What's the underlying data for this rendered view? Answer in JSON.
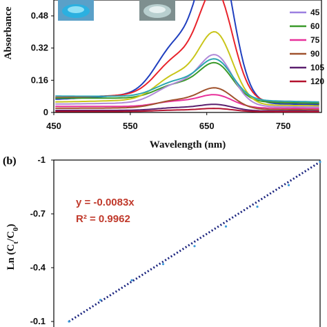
{
  "chart_data": [
    {
      "panel_label": "",
      "type": "line",
      "xlabel": "Wavelength (nm)",
      "ylabel": "Absorbance",
      "xlim": [
        450,
        800
      ],
      "ylim": [
        0,
        0.6
      ],
      "x_ticks": [
        "450",
        "550",
        "650",
        "750"
      ],
      "y_ticks": [
        "0",
        "0.16",
        "0.32",
        "0.48"
      ],
      "legend_position": "right",
      "inset_images": [
        "blue-vial-photo",
        "clear-vial-photo"
      ],
      "series": [
        {
          "name": "",
          "color": "#1f3fbf",
          "peak": 0.75,
          "shoulder": 0.46,
          "base": 0.06
        },
        {
          "name": "",
          "color": "#e8232b",
          "peak": 0.53,
          "shoulder": 0.33,
          "base": 0.07
        },
        {
          "name": "45",
          "color": "#9b7fe0",
          "peak": 0.0,
          "shoulder": 0.0,
          "base": 0.0,
          "legend_only": true
        },
        {
          "name": "60",
          "color": "#3a9a2a",
          "peak": 0.18,
          "shoulder": 0.13,
          "base": 0.07
        },
        {
          "name": "75",
          "color": "#e8309a",
          "peak": 0.06,
          "shoulder": 0.05,
          "base": 0.03
        },
        {
          "name": "90",
          "color": "#a0522d",
          "peak": 0.1,
          "shoulder": 0.07,
          "base": 0.02
        },
        {
          "name": "105",
          "color": "#5a1f6e",
          "peak": 0.03,
          "shoulder": 0.025,
          "base": 0.01
        },
        {
          "name": "120",
          "color": "#b3122e",
          "peak": 0.015,
          "shoulder": 0.012,
          "base": 0.005
        },
        {
          "name": "",
          "color": "#c9c51a",
          "peak": 0.34,
          "shoulder": 0.23,
          "base": 0.05
        },
        {
          "name": "",
          "color": "#b089d8",
          "peak": 0.24,
          "shoulder": 0.17,
          "base": 0.04
        },
        {
          "name": "",
          "color": "#2aa6b0",
          "peak": 0.19,
          "shoulder": 0.14,
          "base": 0.08
        }
      ]
    },
    {
      "panel_label": "(b)",
      "type": "scatter",
      "ylabel": "Ln (Ct/C0)",
      "ylim": [
        -0.1,
        -1
      ],
      "y_ticks": [
        "-1",
        "-0.7",
        "-0.4",
        "-0.1"
      ],
      "equation": "y = -0.0083x",
      "r_squared": "R² = 0.9962",
      "points_x": [
        0,
        15,
        30,
        45,
        60,
        75,
        90,
        105,
        120
      ],
      "points_y": [
        -0.1,
        -0.22,
        -0.33,
        -0.42,
        -0.52,
        -0.63,
        -0.74,
        -0.86,
        -0.99
      ],
      "trendline_color": "#1a237e",
      "point_color": "#3a9ad9"
    }
  ]
}
